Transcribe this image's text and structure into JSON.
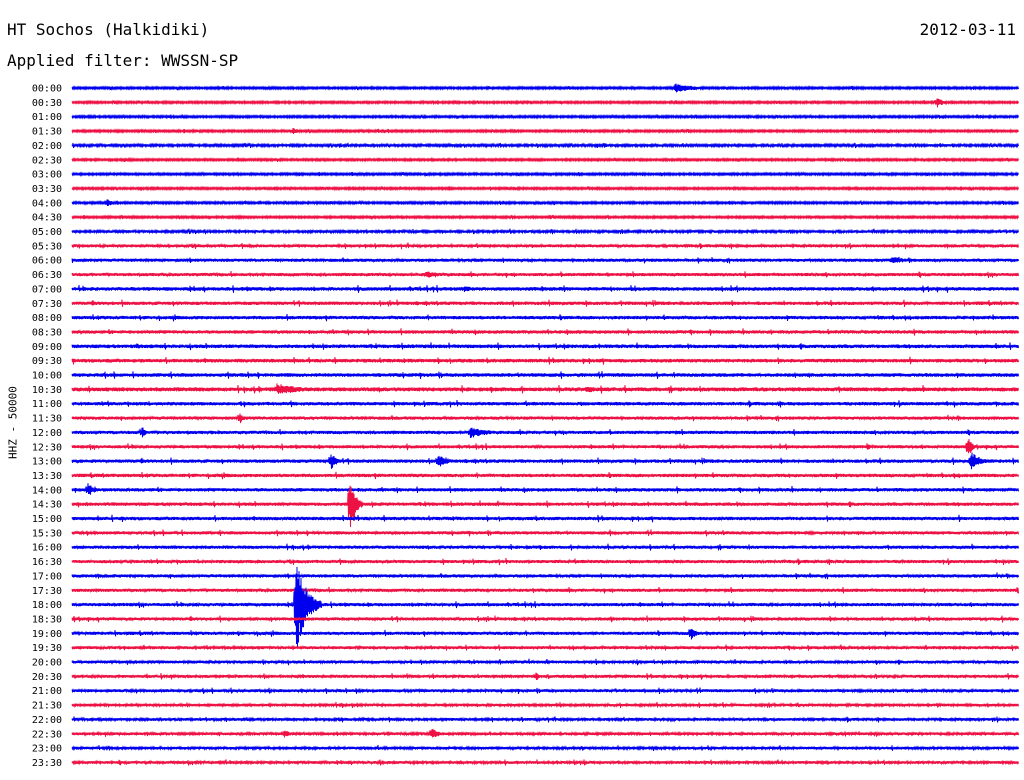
{
  "header": {
    "station": "HT Sochos (Halkidiki)",
    "date": "2012-03-11",
    "filter": "Applied filter: WWSSN-SP"
  },
  "channel_label": "HHZ - 50000",
  "colors": {
    "even_trace": "#0000ee",
    "odd_trace": "#ee1144"
  },
  "chart_data": {
    "type": "line",
    "title": "HT Sochos (Halkidiki)",
    "subtitle": "Applied filter: WWSSN-SP",
    "ylabel": "HHZ - 50000",
    "rows": [
      "00:00",
      "00:30",
      "01:00",
      "01:30",
      "02:00",
      "02:30",
      "03:00",
      "03:30",
      "04:00",
      "04:30",
      "05:00",
      "05:30",
      "06:00",
      "06:30",
      "07:00",
      "07:30",
      "08:00",
      "08:30",
      "09:00",
      "09:30",
      "10:00",
      "10:30",
      "11:00",
      "11:30",
      "12:00",
      "12:30",
      "13:00",
      "13:30",
      "14:00",
      "14:30",
      "15:00",
      "15:30",
      "16:00",
      "16:30",
      "17:00",
      "17:30",
      "18:00",
      "18:30",
      "19:00",
      "19:30",
      "20:00",
      "20:30",
      "21:00",
      "21:30",
      "22:00",
      "22:30",
      "23:00",
      "23:30"
    ],
    "x_range_minutes": [
      0,
      30
    ],
    "row_noise": [
      1.0,
      1.0,
      1.0,
      1.0,
      1.2,
      1.0,
      1.0,
      1.0,
      1.0,
      1.0,
      1.3,
      1.5,
      1.6,
      1.6,
      1.8,
      1.7,
      1.7,
      1.7,
      1.8,
      1.8,
      1.8,
      2.0,
      1.7,
      1.6,
      1.6,
      1.6,
      1.7,
      1.7,
      1.7,
      1.7,
      1.7,
      1.6,
      1.6,
      1.6,
      1.6,
      1.6,
      1.6,
      1.6,
      1.6,
      1.5,
      1.5,
      1.5,
      1.5,
      1.4,
      1.4,
      1.4,
      1.4,
      1.4
    ],
    "events": [
      {
        "row": 0,
        "t": 19.1,
        "amp": 5,
        "dur": 1.6
      },
      {
        "row": 1,
        "t": 27.4,
        "amp": 6,
        "dur": 0.5
      },
      {
        "row": 3,
        "t": 7.0,
        "amp": 4,
        "dur": 0.5
      },
      {
        "row": 8,
        "t": 1.1,
        "amp": 5,
        "dur": 0.4
      },
      {
        "row": 12,
        "t": 26.0,
        "amp": 4,
        "dur": 1.3
      },
      {
        "row": 13,
        "t": 11.2,
        "amp": 4,
        "dur": 1.3
      },
      {
        "row": 14,
        "t": 12.4,
        "amp": 4,
        "dur": 0.8
      },
      {
        "row": 18,
        "t": 2.0,
        "amp": 4,
        "dur": 0.5
      },
      {
        "row": 21,
        "t": 6.5,
        "amp": 6,
        "dur": 2.0
      },
      {
        "row": 21,
        "t": 16.3,
        "amp": 4,
        "dur": 1.0
      },
      {
        "row": 23,
        "t": 5.3,
        "amp": 7,
        "dur": 0.3
      },
      {
        "row": 24,
        "t": 2.2,
        "amp": 8,
        "dur": 0.3
      },
      {
        "row": 24,
        "t": 12.6,
        "amp": 6,
        "dur": 1.5
      },
      {
        "row": 25,
        "t": 25.2,
        "amp": 4,
        "dur": 0.4
      },
      {
        "row": 25,
        "t": 28.4,
        "amp": 12,
        "dur": 0.3
      },
      {
        "row": 26,
        "t": 8.2,
        "amp": 9,
        "dur": 0.5
      },
      {
        "row": 26,
        "t": 11.6,
        "amp": 7,
        "dur": 0.8
      },
      {
        "row": 26,
        "t": 28.5,
        "amp": 10,
        "dur": 0.8
      },
      {
        "row": 28,
        "t": 0.5,
        "amp": 7,
        "dur": 0.5
      },
      {
        "row": 29,
        "t": 8.8,
        "amp": 35,
        "dur": 0.4
      },
      {
        "row": 36,
        "t": 7.1,
        "amp": 48,
        "dur": 0.8
      },
      {
        "row": 38,
        "t": 19.6,
        "amp": 8,
        "dur": 0.5
      },
      {
        "row": 41,
        "t": 14.7,
        "amp": 5,
        "dur": 0.3
      },
      {
        "row": 45,
        "t": 6.7,
        "amp": 5,
        "dur": 0.5
      },
      {
        "row": 45,
        "t": 11.4,
        "amp": 7,
        "dur": 0.5
      }
    ]
  }
}
